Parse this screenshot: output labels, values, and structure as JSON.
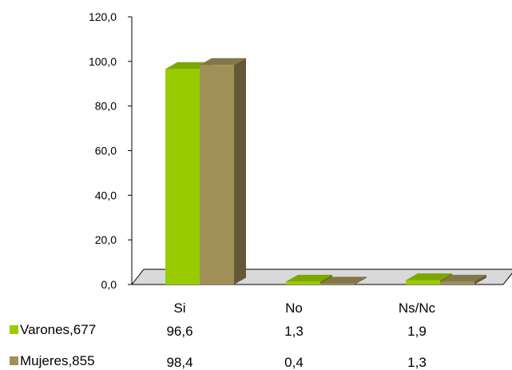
{
  "chart_data": {
    "type": "bar",
    "title": "",
    "xlabel": "",
    "ylabel": "",
    "ylim": [
      0,
      120
    ],
    "y_ticks": [
      "0,0",
      "20,0",
      "40,0",
      "60,0",
      "80,0",
      "100,0",
      "120,0"
    ],
    "categories": [
      "Si",
      "No",
      "Ns/Nc"
    ],
    "series": [
      {
        "name": "Varones,677",
        "values": [
          96.6,
          1.3,
          1.9
        ],
        "labels": [
          "96,6",
          "1,3",
          "1,9"
        ],
        "color": "#99cc00"
      },
      {
        "name": "Mujeres,855",
        "values": [
          98.4,
          0.4,
          1.3
        ],
        "labels": [
          "98,4",
          "0,4",
          "1,3"
        ],
        "color": "#a09058"
      }
    ],
    "style": "3d-clustered-column",
    "legend": "data-table-below",
    "grid": false
  }
}
